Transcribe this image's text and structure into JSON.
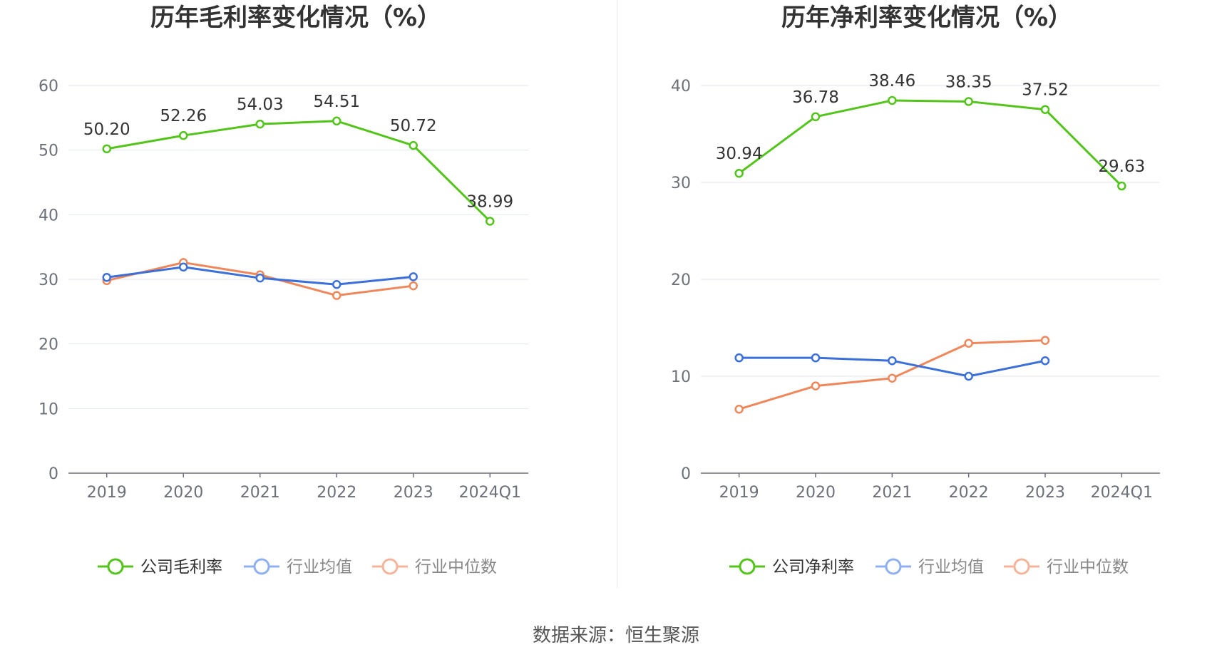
{
  "charts": [
    {
      "title": "历年毛利率变化情况（%）",
      "categories": [
        "2019",
        "2020",
        "2021",
        "2022",
        "2023",
        "2024Q1"
      ],
      "yticks": [
        "0",
        "10",
        "20",
        "30",
        "40",
        "50",
        "60"
      ],
      "legend": [
        "公司毛利率",
        "行业均值",
        "行业中位数"
      ]
    },
    {
      "title": "历年净利率变化情况（%）",
      "categories": [
        "2019",
        "2020",
        "2021",
        "2022",
        "2023",
        "2024Q1"
      ],
      "yticks": [
        "0",
        "10",
        "20",
        "30",
        "40"
      ],
      "legend": [
        "公司净利率",
        "行业均值",
        "行业中位数"
      ]
    }
  ],
  "source_text": "数据来源：恒生聚源",
  "colors": {
    "company": "#52c41a",
    "industry_avg": "#3b6fd9",
    "industry_median": "#f0875a",
    "legend_avg": "#8fb0f0",
    "legend_median": "#f5b49a"
  },
  "chart_data": [
    {
      "type": "line",
      "title": "历年毛利率变化情况（%）",
      "categories": [
        "2019",
        "2020",
        "2021",
        "2022",
        "2023",
        "2024Q1"
      ],
      "ylim": [
        0,
        60
      ],
      "grid": true,
      "legend_position": "bottom",
      "series": [
        {
          "name": "公司毛利率",
          "values": [
            50.2,
            52.26,
            54.03,
            54.51,
            50.72,
            38.99
          ],
          "labels": [
            "50.20",
            "52.26",
            "54.03",
            "54.51",
            "50.72",
            "38.99"
          ]
        },
        {
          "name": "行业均值",
          "values": [
            30.3,
            31.9,
            30.2,
            29.2,
            30.4,
            null
          ]
        },
        {
          "name": "行业中位数",
          "values": [
            29.8,
            32.6,
            30.7,
            27.5,
            29.0,
            null
          ]
        }
      ]
    },
    {
      "type": "line",
      "title": "历年净利率变化情况（%）",
      "categories": [
        "2019",
        "2020",
        "2021",
        "2022",
        "2023",
        "2024Q1"
      ],
      "ylim": [
        0,
        40
      ],
      "grid": true,
      "legend_position": "bottom",
      "series": [
        {
          "name": "公司净利率",
          "values": [
            30.94,
            36.78,
            38.46,
            38.35,
            37.52,
            29.63
          ],
          "labels": [
            "30.94",
            "36.78",
            "38.46",
            "38.35",
            "37.52",
            "29.63"
          ]
        },
        {
          "name": "行业均值",
          "values": [
            11.9,
            11.9,
            11.6,
            10.0,
            11.6,
            null
          ]
        },
        {
          "name": "行业中位数",
          "values": [
            6.6,
            9.0,
            9.8,
            13.4,
            13.7,
            null
          ]
        }
      ]
    }
  ]
}
